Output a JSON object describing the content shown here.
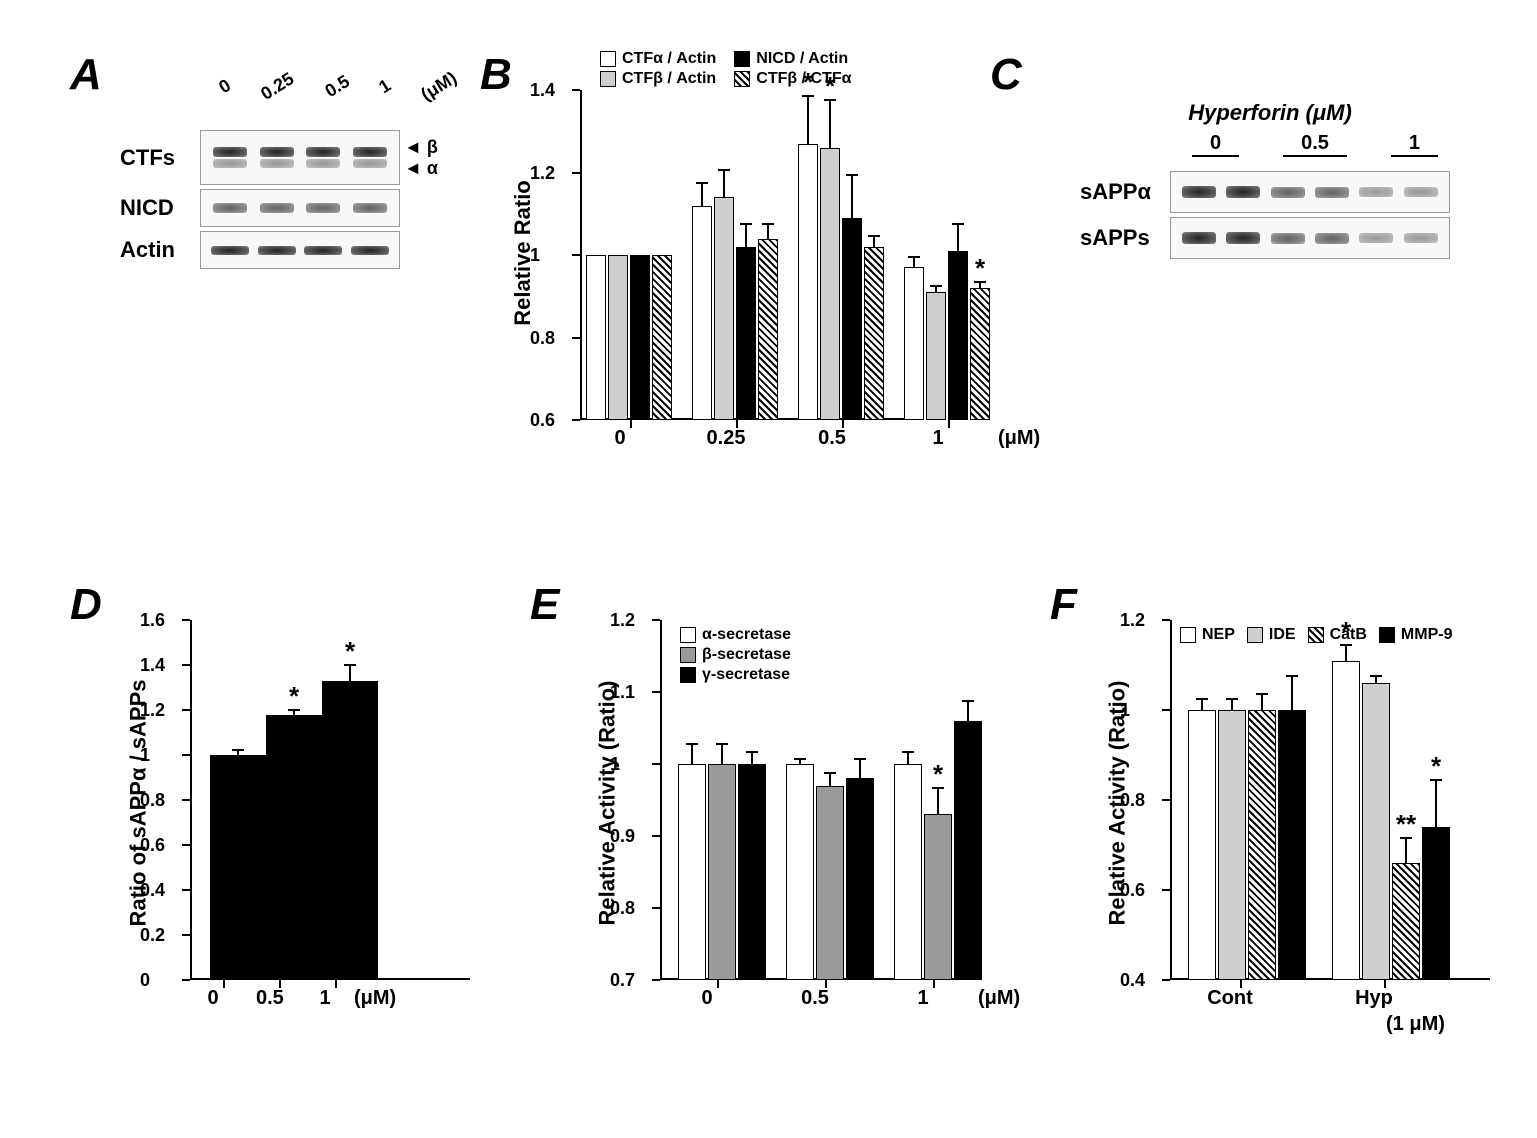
{
  "panels": {
    "A": "A",
    "B": "B",
    "C": "C",
    "D": "D",
    "E": "E",
    "F": "F"
  },
  "panelA": {
    "doses": [
      "0",
      "0.25",
      "0.5",
      "1"
    ],
    "unit": "(μM)",
    "rows": [
      "CTFs",
      "NICD",
      "Actin"
    ],
    "markers": {
      "beta": "β",
      "alpha": "α"
    }
  },
  "panelB": {
    "ylabel": "Relative Ratio",
    "ylim": [
      0.6,
      1.4
    ],
    "ytick_step": 0.2,
    "xcats": [
      "0",
      "0.25",
      "0.5",
      "1"
    ],
    "xunit": "(μM)",
    "series": [
      {
        "name": "CTFα / Actin",
        "fill": "fill-white"
      },
      {
        "name": "CTFβ / Actin",
        "fill": "fill-lgray"
      },
      {
        "name": "NICD / Actin",
        "fill": "fill-black"
      },
      {
        "name": "CTFβ / CTFα",
        "fill": "fill-hatch"
      }
    ],
    "values": [
      [
        1.0,
        1.0,
        1.0,
        1.0
      ],
      [
        1.12,
        1.14,
        1.02,
        1.04
      ],
      [
        1.27,
        1.26,
        1.09,
        1.02
      ],
      [
        0.97,
        0.91,
        1.01,
        0.92
      ]
    ],
    "errors": [
      [
        0,
        0,
        0,
        0
      ],
      [
        0.06,
        0.07,
        0.06,
        0.04
      ],
      [
        0.12,
        0.12,
        0.11,
        0.03
      ],
      [
        0.03,
        0.02,
        0.07,
        0.02
      ]
    ],
    "sig": [
      [],
      [],
      [
        "*",
        "*",
        "",
        ""
      ],
      [
        "",
        "",
        "",
        "*"
      ]
    ]
  },
  "panelC": {
    "title": "Hyperforin (μM)",
    "doses": [
      "0",
      "0.5",
      "1"
    ],
    "rows": [
      "sAPPα",
      "sAPPs"
    ]
  },
  "panelD": {
    "ylabel": "Ratio of sAPPα / sAPPs",
    "ylim": [
      0,
      1.6
    ],
    "ytick_step": 0.2,
    "xcats": [
      "0",
      "0.5",
      "1"
    ],
    "xunit": "(μM)",
    "values": [
      1.0,
      1.18,
      1.33
    ],
    "errors": [
      0.03,
      0.03,
      0.08
    ],
    "sig": [
      "",
      "*",
      "*"
    ]
  },
  "panelE": {
    "ylabel": "Relative Activity (Ratio)",
    "ylim": [
      0.7,
      1.2
    ],
    "ytick_step": 0.1,
    "xcats": [
      "0",
      "0.5",
      "1"
    ],
    "xunit": "(μM)",
    "series": [
      {
        "name": "α-secretase",
        "fill": "fill-white"
      },
      {
        "name": "β-secretase",
        "fill": "fill-gray"
      },
      {
        "name": "γ-secretase",
        "fill": "fill-black"
      }
    ],
    "values": [
      [
        1.0,
        1.0,
        1.0
      ],
      [
        1.0,
        0.97,
        0.98
      ],
      [
        1.0,
        0.93,
        1.06
      ]
    ],
    "errors": [
      [
        0.03,
        0.03,
        0.02
      ],
      [
        0.01,
        0.02,
        0.03
      ],
      [
        0.02,
        0.04,
        0.03
      ]
    ],
    "sig": [
      [],
      [],
      [
        "",
        "*",
        ""
      ]
    ]
  },
  "panelF": {
    "ylabel": "Relative Activity (Ratio)",
    "ylim": [
      0.4,
      1.2
    ],
    "ytick_step": 0.2,
    "xcats": [
      "Cont",
      "Hyp"
    ],
    "xsub": "(1 μM)",
    "series": [
      {
        "name": "NEP",
        "fill": "fill-white"
      },
      {
        "name": "IDE",
        "fill": "fill-lgray"
      },
      {
        "name": "CatB",
        "fill": "fill-hatch"
      },
      {
        "name": "MMP-9",
        "fill": "fill-black"
      }
    ],
    "values": [
      [
        1.0,
        1.0,
        1.0,
        1.0
      ],
      [
        1.11,
        1.06,
        0.66,
        0.74
      ]
    ],
    "errors": [
      [
        0.03,
        0.03,
        0.04,
        0.08
      ],
      [
        0.04,
        0.02,
        0.06,
        0.11
      ]
    ],
    "sig": [
      [],
      [
        "*",
        "",
        "**",
        "*"
      ]
    ]
  },
  "colors": {
    "band": "#2a2a2a"
  }
}
